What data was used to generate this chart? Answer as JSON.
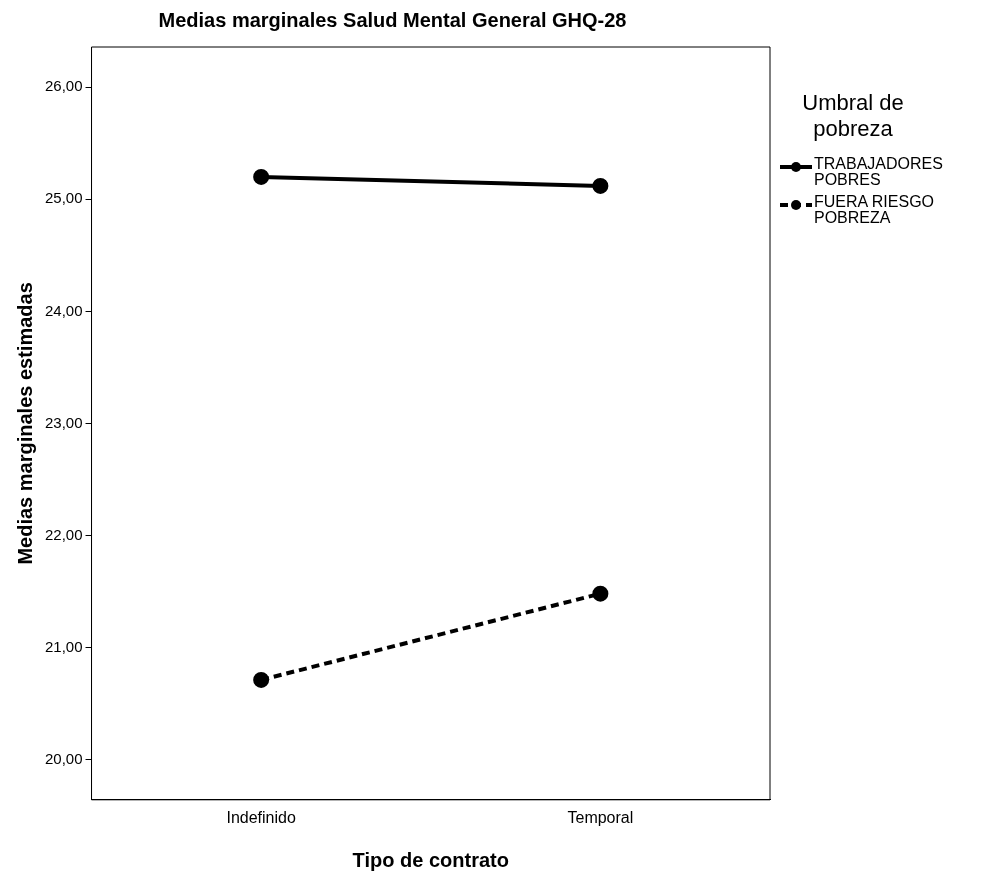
{
  "chart_data": {
    "type": "line",
    "title": "Medias marginales Salud Mental General GHQ-28",
    "xlabel": "Tipo de contrato",
    "ylabel": "Medias marginales estimadas",
    "legend_title": "Umbral de pobreza",
    "categories": [
      "Indefinido",
      "Temporal"
    ],
    "series": [
      {
        "name": "TRABAJADORES POBRES",
        "color": "#000000",
        "values": [
          25.2,
          25.12
        ],
        "line_style": "solid"
      },
      {
        "name": "FUERA RIESGO POBREZA",
        "color": "#000000",
        "values": [
          20.71,
          21.48
        ],
        "line_style": "dashed"
      }
    ],
    "ylim": [
      19.64,
      26.36
    ],
    "yticks": [
      {
        "value": 20,
        "label": "20,00"
      },
      {
        "value": 21,
        "label": "21,00"
      },
      {
        "value": 22,
        "label": "22,00"
      },
      {
        "value": 23,
        "label": "23,00"
      },
      {
        "value": 24,
        "label": "24,00"
      },
      {
        "value": 25,
        "label": "25,00"
      },
      {
        "value": 26,
        "label": "26,00"
      }
    ],
    "grid": false,
    "legend": "right",
    "marker": "circle"
  }
}
